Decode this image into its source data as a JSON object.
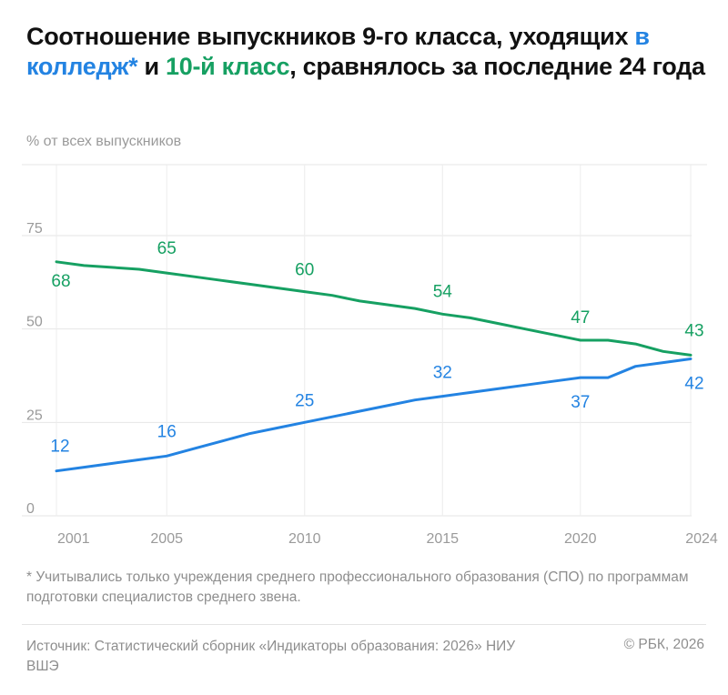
{
  "title": {
    "part1": "Соотношение выпускников 9-го класса, уходящих ",
    "blue": "в колледж*",
    "part2": " и ",
    "green": "10-й класс",
    "part3": ", сравнялось за последние 24 года"
  },
  "footnote": "* Учитывались только учреждения среднего профессионального образования (СПО) по программам подготовки специалистов среднего звена.",
  "source": "Источник: Статистический сборник «Индикаторы образования: 2026» НИУ ВШЭ",
  "copyright": "© РБК, 2026",
  "chart_data": {
    "type": "line",
    "ylabel": "% от всех выпускников",
    "ylim": [
      0,
      94
    ],
    "yticks": [
      0,
      25,
      50,
      75
    ],
    "xticks": [
      2001,
      2005,
      2010,
      2015,
      2020,
      2024
    ],
    "grid": true,
    "x": [
      2001,
      2002,
      2003,
      2004,
      2005,
      2006,
      2007,
      2008,
      2009,
      2010,
      2011,
      2012,
      2013,
      2014,
      2015,
      2016,
      2017,
      2018,
      2019,
      2020,
      2021,
      2022,
      2023,
      2024
    ],
    "series": [
      {
        "key": "tenth-grade",
        "color": "#16a062",
        "values": [
          68,
          67,
          66.5,
          66,
          65,
          64,
          63,
          62,
          61,
          60,
          59,
          57.5,
          56.5,
          55.5,
          54,
          53,
          51.5,
          50,
          48.5,
          47,
          47,
          46,
          44,
          43
        ],
        "labels": [
          {
            "x": 2001,
            "text": "68"
          },
          {
            "x": 2005,
            "text": "65"
          },
          {
            "x": 2010,
            "text": "60"
          },
          {
            "x": 2015,
            "text": "54"
          },
          {
            "x": 2020,
            "text": "47"
          },
          {
            "x": 2024,
            "text": "43"
          }
        ]
      },
      {
        "key": "college",
        "color": "#2383e2",
        "values": [
          12,
          13,
          14,
          15,
          16,
          18,
          20,
          22,
          23.5,
          25,
          26.5,
          28,
          29.5,
          31,
          32,
          33,
          34,
          35,
          36,
          37,
          37,
          40,
          41,
          42
        ],
        "labels": [
          {
            "x": 2001,
            "text": "12"
          },
          {
            "x": 2005,
            "text": "16"
          },
          {
            "x": 2010,
            "text": "25"
          },
          {
            "x": 2015,
            "text": "32"
          },
          {
            "x": 2020,
            "text": "37"
          },
          {
            "x": 2024,
            "text": "42"
          }
        ]
      }
    ]
  }
}
